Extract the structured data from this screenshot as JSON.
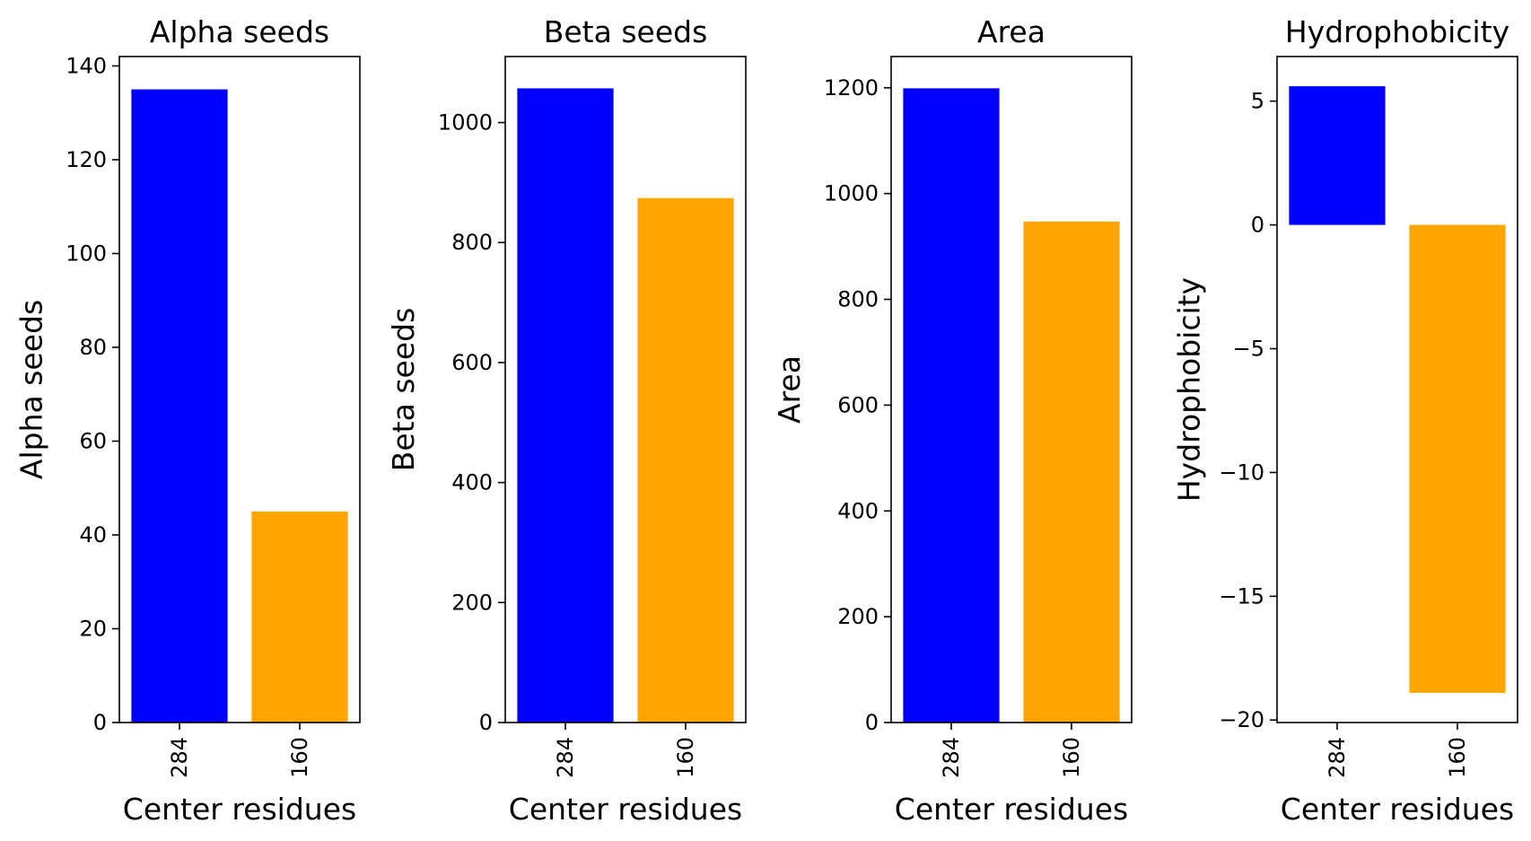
{
  "chart_data": [
    {
      "type": "bar",
      "title": "Alpha seeds",
      "xlabel": "Center residues",
      "ylabel": "Alpha seeds",
      "categories": [
        "284",
        "160"
      ],
      "values": [
        135,
        45
      ],
      "ylim": [
        0,
        142
      ],
      "yticks": [
        0,
        20,
        40,
        60,
        80,
        100,
        120,
        140
      ],
      "ytick_labels": [
        "0",
        "20",
        "40",
        "60",
        "80",
        "100",
        "120",
        "140"
      ],
      "colors": [
        "#0000ff",
        "#ffa500"
      ]
    },
    {
      "type": "bar",
      "title": "Beta seeds",
      "xlabel": "Center residues",
      "ylabel": "Beta seeds",
      "categories": [
        "284",
        "160"
      ],
      "values": [
        1057,
        874
      ],
      "ylim": [
        0,
        1110
      ],
      "yticks": [
        0,
        200,
        400,
        600,
        800,
        1000
      ],
      "ytick_labels": [
        "0",
        "200",
        "400",
        "600",
        "800",
        "1000"
      ],
      "colors": [
        "#0000ff",
        "#ffa500"
      ]
    },
    {
      "type": "bar",
      "title": "Area",
      "xlabel": "Center residues",
      "ylabel": "Area",
      "categories": [
        "284",
        "160"
      ],
      "values": [
        1199,
        947
      ],
      "ylim": [
        0,
        1259
      ],
      "yticks": [
        0,
        200,
        400,
        600,
        800,
        1000,
        1200
      ],
      "ytick_labels": [
        "0",
        "200",
        "400",
        "600",
        "800",
        "1000",
        "1200"
      ],
      "colors": [
        "#0000ff",
        "#ffa500"
      ]
    },
    {
      "type": "bar",
      "title": "Hydrophobicity",
      "xlabel": "Center residues",
      "ylabel": "Hydrophobicity",
      "categories": [
        "284",
        "160"
      ],
      "values": [
        5.6,
        -18.9
      ],
      "ylim": [
        -20.1,
        6.8
      ],
      "yticks": [
        -20,
        -15,
        -10,
        -5,
        0,
        5
      ],
      "ytick_labels": [
        "−20",
        "−15",
        "−10",
        "−5",
        "0",
        "5"
      ],
      "colors": [
        "#0000ff",
        "#ffa500"
      ]
    }
  ]
}
